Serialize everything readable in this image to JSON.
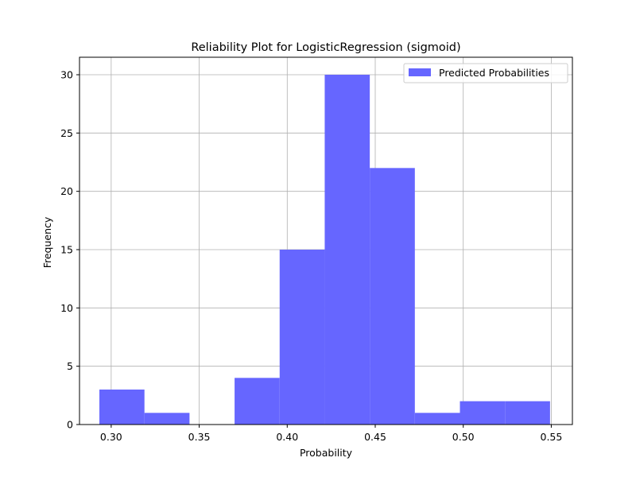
{
  "chart_data": {
    "type": "bar",
    "title": "Reliability Plot for LogisticRegression (sigmoid)",
    "xlabel": "Probability",
    "ylabel": "Frequency",
    "xlim": [
      0.282,
      0.562
    ],
    "ylim": [
      0,
      31.5
    ],
    "xticks": [
      0.3,
      0.35,
      0.4,
      0.45,
      0.5,
      0.55
    ],
    "xtick_labels": [
      "0.30",
      "0.35",
      "0.40",
      "0.45",
      "0.50",
      "0.55"
    ],
    "yticks": [
      0,
      5,
      10,
      15,
      20,
      25,
      30
    ],
    "ytick_labels": [
      "0",
      "5",
      "10",
      "15",
      "20",
      "25",
      "30"
    ],
    "grid": true,
    "legend_position": "upper right",
    "color": "#6666ff",
    "series": [
      {
        "name": "Predicted Probabilities",
        "bin_edges": [
          0.2933,
          0.3189,
          0.3445,
          0.3701,
          0.3957,
          0.4213,
          0.4469,
          0.4725,
          0.4981,
          0.5237,
          0.5493
        ],
        "values": [
          3,
          1,
          0,
          4,
          15,
          30,
          22,
          1,
          2,
          2
        ]
      }
    ]
  }
}
